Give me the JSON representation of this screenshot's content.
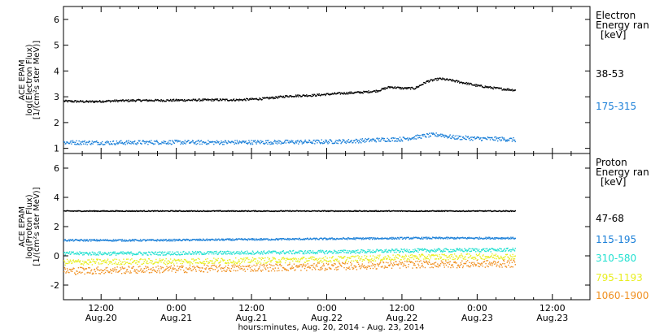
{
  "chart_data": {
    "type": "scatter",
    "xlabel": "hours:minutes, Aug. 20, 2014 - Aug. 23, 2014",
    "x_ticks": [
      {
        "hour": 12,
        "time": "12:00",
        "date": "Aug.20"
      },
      {
        "hour": 24,
        "time": "0:00",
        "date": "Aug.21"
      },
      {
        "hour": 36,
        "time": "12:00",
        "date": "Aug.21"
      },
      {
        "hour": 48,
        "time": "0:00",
        "date": "Aug.22"
      },
      {
        "hour": 60,
        "time": "12:00",
        "date": "Aug.22"
      },
      {
        "hour": 72,
        "time": "0:00",
        "date": "Aug.23"
      },
      {
        "hour": 84,
        "time": "12:00",
        "date": "Aug.23"
      }
    ],
    "x_range_hours": [
      6,
      90
    ],
    "panels": [
      {
        "ylabel": [
          "ACE EPAM",
          "log(Electron Flux)",
          "[1/(cm²s ster MeV)]"
        ],
        "ylim": [
          0.8,
          6.5
        ],
        "y_ticks": [
          1,
          2,
          3,
          4,
          5,
          6
        ],
        "legend_title": [
          "Electron",
          "Energy ran",
          "[keV]"
        ],
        "series": [
          {
            "name": "38-53",
            "color": "#000000",
            "points": [
              [
                6,
                2.85
              ],
              [
                10,
                2.83
              ],
              [
                14,
                2.86
              ],
              [
                18,
                2.88
              ],
              [
                22,
                2.88
              ],
              [
                26,
                2.89
              ],
              [
                30,
                2.9
              ],
              [
                34,
                2.9
              ],
              [
                38,
                2.95
              ],
              [
                42,
                3.05
              ],
              [
                46,
                3.08
              ],
              [
                50,
                3.15
              ],
              [
                54,
                3.2
              ],
              [
                56,
                3.25
              ],
              [
                58,
                3.4
              ],
              [
                60,
                3.35
              ],
              [
                62,
                3.35
              ],
              [
                64,
                3.62
              ],
              [
                66,
                3.72
              ],
              [
                68,
                3.65
              ],
              [
                70,
                3.55
              ],
              [
                72,
                3.45
              ],
              [
                74,
                3.38
              ],
              [
                76,
                3.32
              ],
              [
                78,
                3.28
              ]
            ]
          },
          {
            "name": "175-315",
            "color": "#1a7fd8",
            "points": [
              [
                6,
                1.25
              ],
              [
                14,
                1.24
              ],
              [
                22,
                1.26
              ],
              [
                30,
                1.25
              ],
              [
                38,
                1.26
              ],
              [
                46,
                1.27
              ],
              [
                52,
                1.3
              ],
              [
                56,
                1.35
              ],
              [
                60,
                1.38
              ],
              [
                62,
                1.45
              ],
              [
                64,
                1.52
              ],
              [
                66,
                1.55
              ],
              [
                68,
                1.45
              ],
              [
                72,
                1.4
              ],
              [
                76,
                1.38
              ],
              [
                78,
                1.35
              ]
            ]
          }
        ]
      },
      {
        "ylabel": [
          "ACE EPAM",
          "log(Proton Flux)",
          "[1/(cm²s ster MeV)]"
        ],
        "ylim": [
          -3,
          7
        ],
        "y_ticks": [
          -2,
          0,
          2,
          4,
          6
        ],
        "legend_title": [
          "Proton",
          "Energy ran",
          "[keV]"
        ],
        "series": [
          {
            "name": "47-68",
            "color": "#000000",
            "points": [
              [
                6,
                3.1
              ],
              [
                20,
                3.1
              ],
              [
                34,
                3.1
              ],
              [
                48,
                3.1
              ],
              [
                62,
                3.1
              ],
              [
                78,
                3.1
              ]
            ]
          },
          {
            "name": "115-195",
            "color": "#1a7fd8",
            "points": [
              [
                6,
                1.1
              ],
              [
                20,
                1.1
              ],
              [
                34,
                1.15
              ],
              [
                48,
                1.2
              ],
              [
                62,
                1.25
              ],
              [
                78,
                1.25
              ]
            ]
          },
          {
            "name": "310-580",
            "color": "#22e0d0",
            "points": [
              [
                6,
                0.2
              ],
              [
                20,
                0.2
              ],
              [
                34,
                0.25
              ],
              [
                48,
                0.3
              ],
              [
                62,
                0.4
              ],
              [
                78,
                0.45
              ]
            ]
          },
          {
            "name": "795-1193",
            "color": "#e8ee20",
            "points": [
              [
                6,
                -0.4
              ],
              [
                20,
                -0.35
              ],
              [
                34,
                -0.3
              ],
              [
                48,
                -0.2
              ],
              [
                62,
                -0.05
              ],
              [
                78,
                0.0
              ]
            ]
          },
          {
            "name": "1060-1900",
            "color": "#f09020",
            "points": [
              [
                6,
                -1.0
              ],
              [
                20,
                -0.9
              ],
              [
                34,
                -0.8
              ],
              [
                48,
                -0.7
              ],
              [
                62,
                -0.55
              ],
              [
                78,
                -0.5
              ]
            ]
          }
        ]
      }
    ]
  }
}
